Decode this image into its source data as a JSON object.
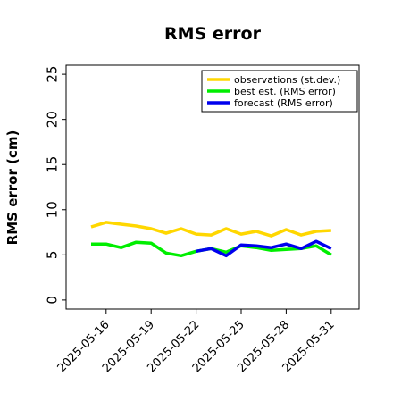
{
  "chart_data": {
    "type": "line",
    "title": "RMS error",
    "ylabel": "RMS error (cm)",
    "xlabel": "",
    "ylim": [
      -1,
      26
    ],
    "yticks": [
      0,
      5,
      10,
      15,
      20,
      25
    ],
    "x": [
      "2025-05-15",
      "2025-05-16",
      "2025-05-17",
      "2025-05-18",
      "2025-05-19",
      "2025-05-20",
      "2025-05-21",
      "2025-05-22",
      "2025-05-23",
      "2025-05-24",
      "2025-05-25",
      "2025-05-26",
      "2025-05-27",
      "2025-05-28",
      "2025-05-29",
      "2025-05-30",
      "2025-05-31"
    ],
    "xticks": [
      "2025-05-16",
      "2025-05-19",
      "2025-05-22",
      "2025-05-25",
      "2025-05-28",
      "2025-05-31"
    ],
    "highlight_tick": "2025-05-22",
    "highlight_color": "#228B22",
    "legend_position": "top-right",
    "grid": false,
    "series": [
      {
        "name": "observations (st.dev.)",
        "color": "#FFD700",
        "values": [
          8.1,
          8.6,
          8.4,
          8.2,
          7.9,
          7.4,
          7.9,
          7.3,
          7.2,
          7.9,
          7.3,
          7.6,
          7.1,
          7.8,
          7.2,
          7.6,
          7.7
        ]
      },
      {
        "name": "best est. (RMS error)",
        "color": "#00EE00",
        "values": [
          6.2,
          6.2,
          5.8,
          6.4,
          6.3,
          5.2,
          4.9,
          5.4,
          5.7,
          5.3,
          6.0,
          5.8,
          5.5,
          5.6,
          5.7,
          6.0,
          5.0
        ]
      },
      {
        "name": "forecast (RMS error)",
        "color": "#0000EE",
        "values": [
          null,
          null,
          null,
          null,
          null,
          null,
          null,
          5.4,
          5.7,
          4.9,
          6.1,
          6.0,
          5.8,
          6.2,
          5.7,
          6.5,
          5.7
        ]
      }
    ]
  }
}
